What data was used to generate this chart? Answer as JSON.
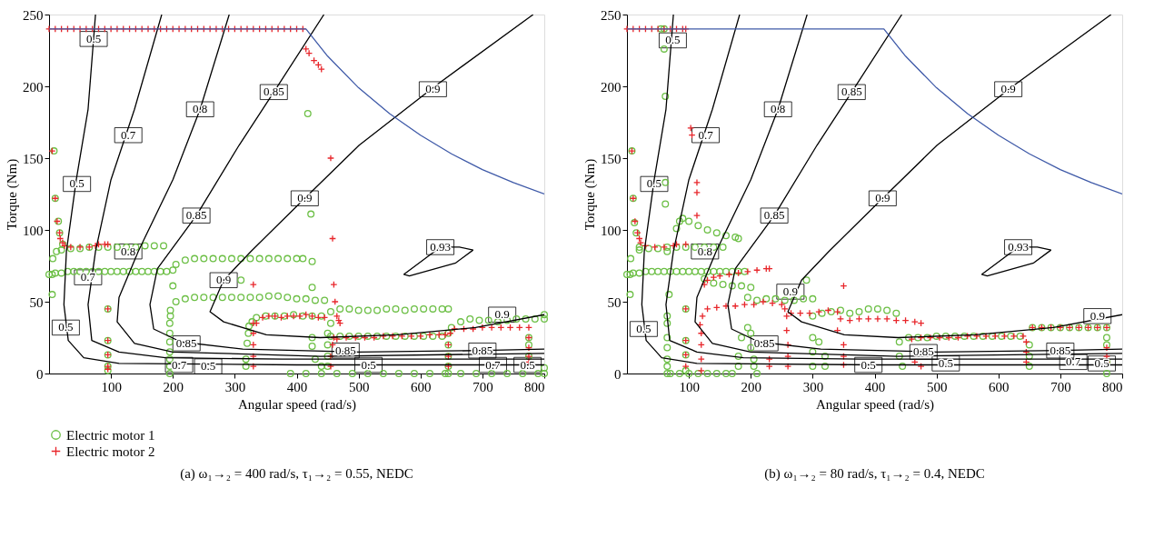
{
  "chart_data": [
    {
      "type": "scatter",
      "title": "(a) ω₁→₂ = 400 rad/s, τ₁→₂ = 0.55, NEDC",
      "xlabel": "Angular speed (rad/s)",
      "ylabel": "Torque (Nm)",
      "xlim": [
        0,
        800
      ],
      "xticks": [
        100,
        200,
        300,
        400,
        500,
        600,
        700,
        800
      ],
      "ylim": [
        0,
        250
      ],
      "yticks": [
        0,
        50,
        100,
        150,
        200,
        250
      ],
      "grid": false,
      "legend": "bottom",
      "series": [
        {
          "type": "line",
          "color": "#000000",
          "x": [
            75,
            63,
            44,
            28,
            24,
            31,
            56,
            113,
            400,
            800
          ],
          "values": [
            250,
            184,
            135,
            85,
            48,
            23,
            11,
            7,
            6,
            6
          ]
        },
        {
          "type": "line",
          "color": "#000000",
          "x": [
            182,
            138,
            100,
            75,
            63,
            69,
            113,
            188,
            376,
            800
          ],
          "values": [
            250,
            184,
            135,
            85,
            48,
            23,
            15,
            11,
            10,
            10
          ]
        },
        {
          "type": "line",
          "color": "#000000",
          "x": [
            291,
            244,
            200,
            144,
            113,
            110,
            138,
            200,
            438,
            800
          ],
          "values": [
            250,
            184,
            135,
            85,
            53,
            36,
            21,
            15,
            12,
            14
          ]
        },
        {
          "type": "line",
          "color": "#000000",
          "x": [
            444,
            363,
            307,
            238,
            175,
            163,
            169,
            213,
            313,
            501,
            700,
            800
          ],
          "values": [
            250,
            196,
            159,
            110,
            73,
            48,
            31,
            22,
            17,
            15,
            16,
            17
          ]
        },
        {
          "type": "line",
          "color": "#000000",
          "x": [
            782,
            626,
            501,
            413,
            326,
            282,
            260,
            282,
            351,
            438,
            563,
            689,
            800
          ],
          "values": [
            250,
            201,
            159,
            122,
            85,
            65,
            43,
            36,
            27,
            25,
            27,
            32,
            41
          ]
        },
        {
          "type": "line",
          "color": "#000000",
          "x": [
            573,
            632,
            663,
            685
          ],
          "values": [
            69,
            88,
            88,
            86
          ]
        },
        {
          "type": "line",
          "color": "#000000",
          "x": [
            573,
            582,
            657,
            685
          ],
          "values": [
            69,
            68,
            77,
            86
          ]
        },
        {
          "type": "line",
          "color": "#3f5aa8",
          "x": [
            0,
            415,
            450,
            500,
            550,
            600,
            650,
            700,
            750,
            800
          ],
          "values": [
            240,
            240,
            221,
            199,
            181,
            166,
            153,
            142,
            133,
            125
          ]
        },
        {
          "name": "Electric motor 1",
          "marker": "circle",
          "color": "#6cbf45",
          "x": [
            5,
            5,
            6,
            8,
            10,
            12,
            15,
            17,
            22,
            0,
            10,
            20,
            30,
            40,
            50,
            60,
            70,
            80,
            90,
            100,
            110,
            120,
            130,
            140,
            150,
            160,
            170,
            180,
            190,
            20,
            35,
            50,
            65,
            80,
            95,
            110,
            125,
            140,
            155,
            170,
            185,
            95,
            95,
            95,
            95,
            95,
            195,
            195,
            195,
            195,
            195,
            195,
            195,
            196,
            196,
            200,
            200,
            205,
            220,
            235,
            250,
            265,
            280,
            295,
            310,
            325,
            340,
            355,
            370,
            385,
            400,
            410,
            205,
            220,
            235,
            250,
            265,
            280,
            295,
            310,
            325,
            340,
            355,
            370,
            385,
            400,
            415,
            430,
            445,
            310,
            418,
            423,
            425,
            425,
            425,
            425,
            430,
            440,
            318,
            318,
            320,
            322,
            323,
            328,
            335,
            350,
            365,
            380,
            395,
            410,
            425,
            440,
            455,
            470,
            485,
            500,
            515,
            530,
            545,
            560,
            575,
            590,
            605,
            620,
            635,
            645,
            455,
            470,
            485,
            500,
            515,
            530,
            545,
            560,
            575,
            590,
            605,
            620,
            635,
            450,
            450,
            450,
            450,
            455,
            645,
            645,
            645,
            645,
            645,
            650,
            665,
            680,
            695,
            710,
            725,
            740,
            755,
            770,
            785,
            800,
            390,
            415,
            440,
            465,
            490,
            515,
            540,
            565,
            590,
            615,
            640,
            665,
            690,
            715,
            740,
            765,
            790,
            800,
            775,
            775,
            775,
            800,
            800
          ],
          "values": [
            55,
            69,
            80,
            155,
            122,
            85,
            106,
            98,
            90,
            69,
            70,
            70,
            71,
            71,
            71,
            71,
            71,
            71,
            71,
            71,
            71,
            71,
            71,
            71,
            71,
            71,
            71,
            71,
            71,
            86,
            87,
            87,
            88,
            88,
            88,
            88,
            88,
            88,
            89,
            89,
            89,
            45,
            23,
            13,
            5,
            2,
            0,
            5,
            10,
            15,
            22,
            28,
            35,
            40,
            44,
            61,
            72,
            76,
            79,
            80,
            80,
            80,
            80,
            80,
            80,
            80,
            80,
            80,
            80,
            80,
            80,
            80,
            50,
            52,
            53,
            53,
            53,
            53,
            53,
            53,
            53,
            53,
            54,
            54,
            53,
            52,
            52,
            51,
            51,
            65,
            181,
            111,
            78,
            60,
            25,
            19,
            10,
            5,
            5,
            10,
            21,
            28,
            33,
            36,
            39,
            40,
            40,
            40,
            41,
            40,
            40,
            40,
            43,
            45,
            45,
            44,
            44,
            44,
            45,
            45,
            44,
            45,
            45,
            45,
            45,
            45,
            26,
            26,
            26,
            26,
            26,
            26,
            26,
            26,
            26,
            26,
            26,
            26,
            26,
            5,
            12,
            20,
            28,
            35,
            0,
            5,
            12,
            20,
            28,
            32,
            36,
            38,
            37,
            37,
            36,
            37,
            38,
            38,
            38,
            38,
            0,
            0,
            0,
            0,
            0,
            0,
            0,
            0,
            0,
            0,
            0,
            0,
            0,
            0,
            0,
            0,
            0,
            0,
            25,
            20,
            12,
            4,
            41
          ]
        },
        {
          "name": "Electric motor 2",
          "marker": "cross",
          "color": "#e8262b",
          "x": [
            0,
            10,
            20,
            30,
            40,
            50,
            60,
            70,
            80,
            90,
            100,
            110,
            120,
            130,
            140,
            150,
            160,
            170,
            180,
            190,
            200,
            210,
            220,
            230,
            240,
            250,
            260,
            270,
            280,
            290,
            300,
            310,
            320,
            330,
            340,
            350,
            360,
            370,
            380,
            390,
            400,
            410,
            415,
            420,
            428,
            435,
            440,
            455,
            458,
            460,
            462,
            465,
            468,
            470,
            5,
            10,
            13,
            17,
            18,
            22,
            25,
            35,
            50,
            65,
            75,
            80,
            90,
            95,
            95,
            95,
            95,
            95,
            95,
            330,
            330,
            330,
            330,
            330,
            330,
            335,
            345,
            355,
            365,
            375,
            385,
            395,
            405,
            415,
            425,
            435,
            445,
            455,
            455,
            458,
            460,
            465,
            480,
            495,
            510,
            525,
            540,
            555,
            570,
            585,
            600,
            615,
            630,
            640,
            645,
            645,
            645,
            648,
            655,
            670,
            685,
            700,
            715,
            730,
            745,
            760,
            775,
            775,
            775,
            775,
            775
          ],
          "values": [
            240,
            240,
            240,
            240,
            240,
            240,
            240,
            240,
            240,
            240,
            240,
            240,
            240,
            240,
            240,
            240,
            240,
            240,
            240,
            240,
            240,
            240,
            240,
            240,
            240,
            240,
            240,
            240,
            240,
            240,
            240,
            240,
            240,
            240,
            240,
            240,
            240,
            240,
            240,
            240,
            240,
            240,
            226,
            223,
            218,
            215,
            212,
            150,
            94,
            62,
            50,
            40,
            37,
            35,
            155,
            122,
            106,
            98,
            94,
            91,
            89,
            88,
            88,
            88,
            89,
            90,
            90,
            90,
            45,
            23,
            13,
            5,
            3,
            62,
            35,
            28,
            20,
            12,
            5,
            35,
            39,
            40,
            40,
            39,
            40,
            40,
            40,
            41,
            40,
            39,
            39,
            5,
            12,
            20,
            25,
            24,
            25,
            25,
            25,
            25,
            26,
            26,
            26,
            26,
            26,
            27,
            27,
            27,
            5,
            12,
            20,
            28,
            31,
            31,
            31,
            32,
            32,
            32,
            32,
            32,
            32,
            25,
            18,
            12,
            8
          ]
        }
      ],
      "annotations": [
        {
          "text": "0.5",
          "x": 72,
          "y": 233
        },
        {
          "text": "0.7",
          "x": 128,
          "y": 166
        },
        {
          "text": "0.8",
          "x": 244,
          "y": 184
        },
        {
          "text": "0.85",
          "x": 363,
          "y": 196
        },
        {
          "text": "0.9",
          "x": 620,
          "y": 198
        },
        {
          "text": "0.5",
          "x": 45,
          "y": 132
        },
        {
          "text": "0.85",
          "x": 238,
          "y": 110
        },
        {
          "text": "0.9",
          "x": 413,
          "y": 122
        },
        {
          "text": "0.93",
          "x": 632,
          "y": 88
        },
        {
          "text": "0.9",
          "x": 282,
          "y": 65
        },
        {
          "text": "0.8",
          "x": 128,
          "y": 85
        },
        {
          "text": "0.7",
          "x": 63,
          "y": 67
        },
        {
          "text": "0.5",
          "x": 27,
          "y": 32
        },
        {
          "text": "0.85",
          "x": 222,
          "y": 21
        },
        {
          "text": "0.7",
          "x": 210,
          "y": 6
        },
        {
          "text": "0.5",
          "x": 257,
          "y": 5
        },
        {
          "text": "0.85",
          "x": 479,
          "y": 16
        },
        {
          "text": "0.5",
          "x": 516,
          "y": 6
        },
        {
          "text": "0.9",
          "x": 732,
          "y": 41
        },
        {
          "text": "0.85",
          "x": 700,
          "y": 16
        },
        {
          "text": "0.7",
          "x": 717,
          "y": 6
        },
        {
          "text": "0.5",
          "x": 773,
          "y": 6
        }
      ]
    },
    {
      "type": "scatter",
      "title": "(b) ω₁→₂ = 80 rad/s, τ₁→₂ = 0.4, NEDC",
      "xlabel": "Angular speed (rad/s)",
      "ylabel": "Torque (Nm)",
      "xlim": [
        0,
        800
      ],
      "xticks": [
        100,
        200,
        300,
        400,
        500,
        600,
        700,
        800
      ],
      "ylim": [
        0,
        250
      ],
      "yticks": [
        0,
        50,
        100,
        150,
        200,
        250
      ],
      "grid": false,
      "legend": "bottom",
      "series": [
        {
          "type": "line",
          "color": "#000000",
          "x": [
            75,
            63,
            44,
            28,
            24,
            31,
            56,
            113,
            400,
            800
          ],
          "values": [
            250,
            184,
            135,
            85,
            48,
            23,
            11,
            7,
            6,
            6
          ]
        },
        {
          "type": "line",
          "color": "#000000",
          "x": [
            182,
            138,
            100,
            75,
            63,
            69,
            113,
            188,
            376,
            800
          ],
          "values": [
            250,
            184,
            135,
            85,
            48,
            23,
            15,
            11,
            10,
            10
          ]
        },
        {
          "type": "line",
          "color": "#000000",
          "x": [
            291,
            244,
            200,
            144,
            113,
            110,
            138,
            200,
            438,
            800
          ],
          "values": [
            250,
            184,
            135,
            85,
            53,
            36,
            21,
            15,
            12,
            14
          ]
        },
        {
          "type": "line",
          "color": "#000000",
          "x": [
            444,
            363,
            307,
            238,
            175,
            163,
            169,
            213,
            313,
            501,
            700,
            800
          ],
          "values": [
            250,
            196,
            159,
            110,
            73,
            48,
            31,
            22,
            17,
            15,
            16,
            17
          ]
        },
        {
          "type": "line",
          "color": "#000000",
          "x": [
            782,
            626,
            501,
            413,
            326,
            282,
            260,
            282,
            351,
            438,
            563,
            689,
            800
          ],
          "values": [
            250,
            201,
            159,
            122,
            85,
            65,
            43,
            36,
            27,
            25,
            27,
            32,
            41
          ]
        },
        {
          "type": "line",
          "color": "#000000",
          "x": [
            573,
            632,
            663,
            685
          ],
          "values": [
            69,
            88,
            88,
            86
          ]
        },
        {
          "type": "line",
          "color": "#000000",
          "x": [
            573,
            582,
            657,
            685
          ],
          "values": [
            69,
            68,
            77,
            86
          ]
        },
        {
          "type": "line",
          "color": "#3f5aa8",
          "x": [
            0,
            415,
            450,
            500,
            550,
            600,
            650,
            700,
            750,
            800
          ],
          "values": [
            240,
            240,
            221,
            199,
            181,
            166,
            153,
            142,
            133,
            125
          ]
        },
        {
          "name": "Electric motor 1",
          "marker": "circle",
          "color": "#6cbf45",
          "x": [
            5,
            5,
            6,
            8,
            10,
            12,
            15,
            20,
            0,
            10,
            20,
            30,
            40,
            50,
            60,
            70,
            80,
            90,
            100,
            110,
            120,
            130,
            140,
            150,
            160,
            170,
            180,
            190,
            55,
            60,
            60,
            62,
            62,
            62,
            65,
            68,
            65,
            65,
            65,
            65,
            65,
            65,
            65,
            20,
            35,
            50,
            65,
            80,
            95,
            110,
            125,
            140,
            155,
            80,
            85,
            90,
            100,
            115,
            130,
            145,
            160,
            175,
            180,
            125,
            140,
            155,
            170,
            185,
            200,
            95,
            95,
            95,
            95,
            70,
            85,
            100,
            115,
            130,
            145,
            160,
            170,
            180,
            180,
            185,
            195,
            200,
            200,
            205,
            205,
            210,
            195,
            210,
            225,
            240,
            255,
            270,
            285,
            300,
            300,
            315,
            330,
            345,
            360,
            375,
            390,
            405,
            420,
            435,
            290,
            300,
            300,
            300,
            310,
            320,
            320,
            440,
            440,
            445,
            455,
            470,
            485,
            500,
            515,
            530,
            545,
            560,
            575,
            590,
            605,
            620,
            635,
            650,
            650,
            650,
            655,
            670,
            685,
            700,
            715,
            730,
            745,
            760,
            775,
            775,
            775,
            775,
            775
          ],
          "values": [
            55,
            69,
            80,
            155,
            122,
            105,
            98,
            88,
            69,
            70,
            70,
            71,
            71,
            71,
            71,
            71,
            71,
            71,
            71,
            71,
            71,
            71,
            71,
            71,
            71,
            71,
            71,
            71,
            240,
            240,
            226,
            193,
            133,
            118,
            85,
            55,
            40,
            35,
            25,
            18,
            10,
            5,
            0,
            86,
            87,
            87,
            88,
            88,
            88,
            88,
            88,
            88,
            88,
            101,
            106,
            108,
            106,
            103,
            100,
            98,
            96,
            95,
            94,
            66,
            63,
            62,
            61,
            61,
            60,
            45,
            23,
            13,
            2,
            0,
            0,
            0,
            0,
            0,
            0,
            0,
            0,
            5,
            12,
            25,
            32,
            28,
            18,
            10,
            5,
            0,
            53,
            51,
            52,
            52,
            51,
            51,
            52,
            52,
            40,
            42,
            43,
            44,
            42,
            43,
            45,
            45,
            44,
            42,
            65,
            25,
            15,
            5,
            22,
            12,
            5,
            22,
            12,
            5,
            25,
            25,
            25,
            26,
            26,
            26,
            26,
            26,
            26,
            26,
            26,
            26,
            26,
            5,
            12,
            20,
            32,
            32,
            32,
            32,
            32,
            32,
            32,
            32,
            32,
            25,
            20,
            8,
            0
          ]
        },
        {
          "name": "Electric motor 2",
          "marker": "cross",
          "color": "#e8262b",
          "x": [
            0,
            10,
            20,
            30,
            40,
            50,
            60,
            70,
            80,
            90,
            95,
            103,
            105,
            113,
            113,
            113,
            8,
            10,
            13,
            17,
            20,
            22,
            30,
            45,
            60,
            75,
            80,
            95,
            95,
            95,
            95,
            95,
            125,
            130,
            140,
            150,
            165,
            180,
            195,
            210,
            225,
            230,
            118,
            122,
            130,
            145,
            160,
            175,
            190,
            205,
            220,
            235,
            250,
            120,
            120,
            120,
            120,
            230,
            230,
            255,
            258,
            258,
            260,
            260,
            260,
            265,
            280,
            295,
            310,
            325,
            340,
            345,
            360,
            375,
            390,
            405,
            420,
            435,
            450,
            465,
            475,
            350,
            350,
            350,
            350,
            340,
            460,
            475,
            490,
            505,
            520,
            535,
            550,
            565,
            580,
            595,
            610,
            625,
            640,
            645,
            645,
            645,
            465,
            475,
            655,
            670,
            685,
            700,
            715,
            730,
            745,
            760,
            775,
            775,
            775,
            775
          ],
          "values": [
            240,
            240,
            240,
            240,
            240,
            240,
            240,
            240,
            240,
            240,
            240,
            171,
            166,
            133,
            126,
            110,
            155,
            122,
            106,
            98,
            94,
            91,
            89,
            88,
            88,
            89,
            90,
            90,
            45,
            23,
            13,
            5,
            62,
            65,
            67,
            68,
            69,
            70,
            71,
            72,
            73,
            73,
            34,
            40,
            45,
            46,
            47,
            47,
            48,
            48,
            50,
            49,
            48,
            28,
            20,
            10,
            2,
            10,
            5,
            45,
            40,
            30,
            20,
            12,
            5,
            42,
            42,
            42,
            43,
            44,
            43,
            38,
            37,
            38,
            38,
            38,
            38,
            37,
            37,
            36,
            35,
            61,
            20,
            12,
            6,
            30,
            24,
            25,
            25,
            25,
            25,
            25,
            26,
            26,
            26,
            26,
            26,
            26,
            26,
            8,
            15,
            22,
            8,
            5,
            32,
            32,
            32,
            32,
            32,
            32,
            32,
            32,
            32,
            18,
            12,
            8
          ]
        }
      ],
      "annotations": [
        {
          "text": "0.5",
          "x": 74,
          "y": 232
        },
        {
          "text": "0.7",
          "x": 127,
          "y": 166
        },
        {
          "text": "0.8",
          "x": 244,
          "y": 184
        },
        {
          "text": "0.85",
          "x": 363,
          "y": 196
        },
        {
          "text": "0.9",
          "x": 616,
          "y": 198
        },
        {
          "text": "0.5",
          "x": 44,
          "y": 132
        },
        {
          "text": "0.85",
          "x": 238,
          "y": 110
        },
        {
          "text": "0.9",
          "x": 413,
          "y": 122
        },
        {
          "text": "0.93",
          "x": 632,
          "y": 88
        },
        {
          "text": "0.9",
          "x": 264,
          "y": 57
        },
        {
          "text": "0.8",
          "x": 126,
          "y": 85
        },
        {
          "text": "0.5",
          "x": 27,
          "y": 31
        },
        {
          "text": "0.85",
          "x": 222,
          "y": 21
        },
        {
          "text": "0.5",
          "x": 390,
          "y": 6
        },
        {
          "text": "0.85",
          "x": 479,
          "y": 15
        },
        {
          "text": "0.5",
          "x": 515,
          "y": 7
        },
        {
          "text": "0.9",
          "x": 760,
          "y": 40
        },
        {
          "text": "0.85",
          "x": 700,
          "y": 16
        },
        {
          "text": "0.7",
          "x": 721,
          "y": 8
        },
        {
          "text": "0.5",
          "x": 767,
          "y": 7
        }
      ]
    }
  ]
}
